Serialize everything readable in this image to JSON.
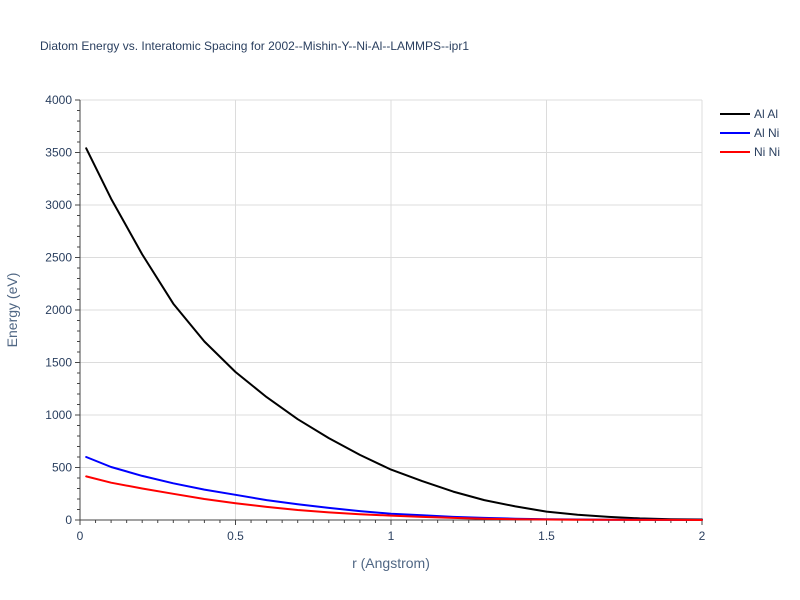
{
  "chart_data": {
    "type": "line",
    "title": "Diatom Energy vs. Interatomic Spacing for 2002--Mishin-Y--Ni-Al--LAMMPS--ipr1",
    "xlabel": "r (Angstrom)",
    "ylabel": "Energy (eV)",
    "xlim": [
      0,
      2
    ],
    "ylim": [
      0,
      4000
    ],
    "xticks": [
      0,
      0.5,
      1,
      1.5,
      2
    ],
    "xtick_labels": [
      "0",
      "0.5",
      "1",
      "1.5",
      "2"
    ],
    "yticks": [
      0,
      500,
      1000,
      1500,
      2000,
      2500,
      3000,
      3500,
      4000
    ],
    "ytick_labels": [
      "0",
      "500",
      "1000",
      "1500",
      "2000",
      "2500",
      "3000",
      "3500",
      "4000"
    ],
    "grid": true,
    "legend_position": "top-right",
    "x": [
      0.02,
      0.1,
      0.2,
      0.3,
      0.4,
      0.5,
      0.6,
      0.7,
      0.8,
      0.9,
      1.0,
      1.1,
      1.2,
      1.3,
      1.4,
      1.5,
      1.6,
      1.7,
      1.8,
      1.9,
      2.0
    ],
    "series": [
      {
        "name": "Al Al",
        "color": "#000000",
        "values": [
          3540,
          3060,
          2530,
          2060,
          1700,
          1410,
          1170,
          960,
          780,
          620,
          480,
          370,
          270,
          190,
          130,
          80,
          50,
          30,
          15,
          8,
          5
        ]
      },
      {
        "name": "Al Ni",
        "color": "#0000ff",
        "values": [
          600,
          505,
          420,
          350,
          290,
          240,
          190,
          150,
          115,
          85,
          60,
          45,
          30,
          20,
          12,
          8,
          5,
          3,
          2,
          1,
          1
        ]
      },
      {
        "name": "Ni Ni",
        "color": "#ff0000",
        "values": [
          415,
          355,
          300,
          250,
          200,
          160,
          125,
          95,
          72,
          55,
          42,
          30,
          20,
          12,
          8,
          5,
          3,
          2,
          1,
          1,
          0
        ]
      }
    ]
  }
}
